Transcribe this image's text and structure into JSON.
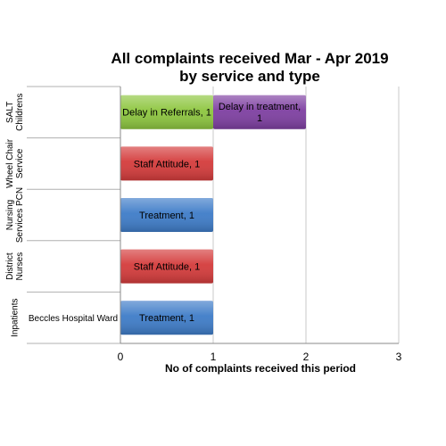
{
  "chart_data": {
    "type": "bar",
    "orientation": "horizontal",
    "stacked": true,
    "title_lines": [
      "All complaints received Mar - Apr 2019",
      "by service and type"
    ],
    "xlabel": "No of complaints received this period",
    "ylabel": "",
    "xlim": [
      0,
      3
    ],
    "x_ticks": [
      "0",
      "1",
      "2",
      "3"
    ],
    "grid": true,
    "legend": "none",
    "groups": [
      {
        "label": "SALT Childrens",
        "label_lines": [
          "SALT",
          "Childrens"
        ],
        "categories": [
          ""
        ]
      },
      {
        "label": "Wheel Chair Service",
        "label_lines": [
          "Wheel Chair",
          "Service"
        ],
        "categories": [
          ""
        ]
      },
      {
        "label": "Nursing Services PCN",
        "label_lines": [
          "Nursing",
          "Services PCN"
        ],
        "categories": [
          ""
        ]
      },
      {
        "label": "District Nurses",
        "label_lines": [
          "District",
          "Nurses"
        ],
        "categories": [
          ""
        ]
      },
      {
        "label": "Inpatients",
        "label_lines": [
          "Inpatients"
        ],
        "categories": [
          "Beccles Hospital Ward"
        ]
      }
    ],
    "bars": [
      {
        "group": 0,
        "segments": [
          {
            "name": "Delay in Referrals",
            "value": 1,
            "label": "Delay in Referrals, 1",
            "color": "#8DC63F"
          },
          {
            "name": "Delay in treatment",
            "value": 1,
            "label_lines": [
              "Delay in treatment,",
              "1"
            ],
            "color": "#7E3FA1"
          }
        ]
      },
      {
        "group": 1,
        "segments": [
          {
            "name": "Staff Attitude",
            "value": 1,
            "label": "Staff Attitude, 1",
            "color": "#D43B3B"
          }
        ]
      },
      {
        "group": 2,
        "segments": [
          {
            "name": "Treatment",
            "value": 1,
            "label": "Treatment, 1",
            "color": "#3E7CC8"
          }
        ]
      },
      {
        "group": 3,
        "segments": [
          {
            "name": "Staff Attitude",
            "value": 1,
            "label": "Staff Attitude, 1",
            "color": "#D43B3B"
          }
        ]
      },
      {
        "group": 4,
        "segments": [
          {
            "name": "Treatment",
            "value": 1,
            "label": "Treatment, 1",
            "color": "#3E7CC8"
          }
        ]
      }
    ]
  }
}
